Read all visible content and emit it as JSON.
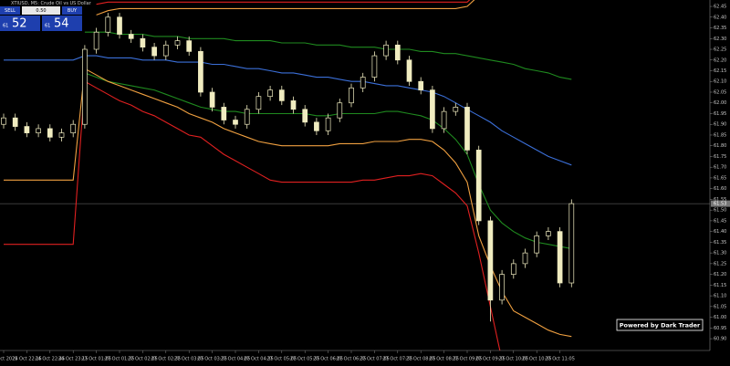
{
  "chart_data": {
    "type": "candlestick",
    "title": "XTIUSD, M5: Crude Oil vs US Dollar",
    "categories": [
      "24 Oct 2025",
      null,
      "24 Oct 22:15",
      null,
      "24 Oct 22:45",
      null,
      "24 Oct 23:15",
      null,
      "27 Oct 01:05",
      null,
      "27 Oct 01:35",
      null,
      "27 Oct 02:05",
      null,
      "27 Oct 02:35",
      null,
      "27 Oct 03:05",
      null,
      "27 Oct 03:35",
      null,
      "27 Oct 04:05",
      null,
      "27 Oct 04:35",
      null,
      "27 Oct 05:05",
      null,
      "27 Oct 05:35",
      null,
      "27 Oct 06:05",
      null,
      "27 Oct 06:35",
      null,
      "27 Oct 07:05",
      null,
      "27 Oct 07:35",
      null,
      "27 Oct 08:05",
      null,
      "27 Oct 08:35",
      null,
      "27 Oct 09:05",
      null,
      "27 Oct 09:35",
      null,
      "27 Oct 10:05",
      null,
      "27 Oct 10:35",
      null,
      "27 Oct 11:05",
      null
    ],
    "open": [
      61.9,
      61.93,
      61.89,
      61.86,
      61.88,
      61.84,
      61.86,
      61.9,
      62.25,
      62.33,
      62.4,
      62.32,
      62.3,
      62.26,
      62.22,
      62.27,
      62.29,
      62.24,
      62.05,
      61.98,
      61.92,
      61.9,
      61.97,
      62.03,
      62.06,
      62.01,
      61.97,
      61.91,
      61.87,
      61.93,
      62.0,
      62.07,
      62.12,
      62.22,
      62.27,
      62.2,
      62.1,
      62.06,
      61.88,
      61.96,
      61.98,
      61.78,
      61.45,
      61.08,
      61.2,
      61.25,
      61.3,
      61.38,
      61.4,
      61.16
    ],
    "high": [
      61.95,
      61.95,
      61.91,
      61.9,
      61.9,
      61.88,
      61.92,
      62.27,
      62.35,
      62.42,
      62.42,
      62.34,
      62.32,
      62.28,
      62.29,
      62.31,
      62.31,
      62.26,
      62.07,
      62.0,
      61.94,
      61.99,
      62.05,
      62.08,
      62.08,
      62.03,
      61.99,
      61.93,
      61.95,
      62.02,
      62.09,
      62.14,
      62.24,
      62.29,
      62.29,
      62.22,
      62.12,
      62.08,
      61.98,
      62.0,
      62.0,
      61.8,
      61.47,
      61.22,
      61.27,
      61.32,
      61.4,
      61.42,
      61.42,
      61.55
    ],
    "low": [
      61.88,
      61.87,
      61.84,
      61.84,
      61.82,
      61.82,
      61.84,
      61.88,
      62.23,
      62.31,
      62.3,
      62.28,
      62.24,
      62.2,
      62.2,
      62.25,
      62.22,
      62.03,
      61.96,
      61.9,
      61.88,
      61.88,
      61.95,
      62.01,
      61.99,
      61.95,
      61.89,
      61.85,
      61.85,
      61.91,
      61.98,
      62.05,
      62.1,
      62.2,
      62.18,
      62.08,
      62.04,
      61.86,
      61.86,
      61.94,
      61.76,
      61.43,
      60.98,
      61.06,
      61.18,
      61.23,
      61.28,
      61.36,
      61.14,
      61.14
    ],
    "close": [
      61.93,
      61.89,
      61.86,
      61.88,
      61.84,
      61.86,
      61.9,
      62.25,
      62.33,
      62.4,
      62.32,
      62.3,
      62.26,
      62.22,
      62.27,
      62.29,
      62.24,
      62.05,
      61.98,
      61.92,
      61.9,
      61.97,
      62.03,
      62.06,
      62.01,
      61.97,
      61.91,
      61.87,
      61.93,
      62.0,
      62.07,
      62.12,
      62.22,
      62.27,
      62.2,
      62.1,
      62.06,
      61.88,
      61.96,
      61.98,
      61.78,
      61.45,
      61.08,
      61.2,
      61.25,
      61.3,
      61.38,
      61.4,
      61.16,
      61.53
    ],
    "candle_color": "#f0ecc0",
    "bands": [
      {
        "color": "#3b6fd8",
        "values": [
          62.2,
          62.2,
          62.2,
          62.2,
          62.2,
          62.2,
          62.2,
          62.22,
          62.22,
          62.21,
          62.21,
          62.21,
          62.2,
          62.2,
          62.2,
          62.19,
          62.19,
          62.19,
          62.18,
          62.18,
          62.17,
          62.16,
          62.16,
          62.15,
          62.14,
          62.14,
          62.13,
          62.12,
          62.12,
          62.11,
          62.1,
          62.1,
          62.09,
          62.08,
          62.08,
          62.07,
          62.06,
          62.05,
          62.03,
          62.0,
          61.97,
          61.94,
          61.91,
          61.87,
          61.84,
          61.81,
          61.78,
          61.75,
          61.73,
          61.71
        ]
      },
      {
        "color": "#1f8a1f",
        "values": [
          null,
          null,
          null,
          null,
          null,
          null,
          null,
          62.33,
          62.33,
          62.33,
          62.32,
          62.32,
          62.32,
          62.31,
          62.31,
          62.31,
          62.3,
          62.3,
          62.3,
          62.3,
          62.29,
          62.29,
          62.29,
          62.29,
          62.28,
          62.28,
          62.28,
          62.27,
          62.27,
          62.27,
          62.26,
          62.26,
          62.26,
          62.25,
          62.25,
          62.25,
          62.24,
          62.24,
          62.23,
          62.23,
          62.22,
          62.21,
          62.2,
          62.19,
          62.18,
          62.16,
          62.15,
          62.14,
          62.12,
          62.11
        ]
      },
      {
        "color": "#1f8a1f",
        "values": [
          null,
          null,
          null,
          null,
          null,
          null,
          null,
          62.14,
          62.12,
          62.1,
          62.09,
          62.08,
          62.07,
          62.06,
          62.04,
          62.02,
          62.0,
          61.98,
          61.97,
          61.96,
          61.96,
          61.95,
          61.95,
          61.95,
          61.95,
          61.95,
          61.95,
          61.94,
          61.94,
          61.95,
          61.95,
          61.95,
          61.95,
          61.96,
          61.96,
          61.95,
          61.94,
          61.92,
          61.88,
          61.83,
          61.76,
          61.62,
          61.5,
          61.44,
          61.4,
          61.37,
          61.35,
          61.34,
          61.33,
          61.32
        ]
      },
      {
        "color": "#f0a040",
        "values": [
          61.64,
          61.64,
          61.64,
          61.64,
          61.64,
          61.64,
          61.64,
          62.16,
          62.13,
          62.1,
          62.08,
          62.06,
          62.04,
          62.02,
          62.0,
          61.98,
          61.95,
          61.93,
          61.91,
          61.88,
          61.86,
          61.84,
          61.82,
          61.81,
          61.8,
          61.8,
          61.8,
          61.8,
          61.8,
          61.81,
          61.81,
          61.81,
          61.82,
          61.82,
          61.82,
          61.83,
          61.83,
          61.82,
          61.78,
          61.72,
          61.63,
          61.38,
          61.24,
          61.12,
          61.03,
          61.0,
          60.97,
          60.94,
          60.92,
          60.91
        ]
      },
      {
        "color": "#f0a040",
        "values": [
          null,
          null,
          null,
          null,
          null,
          null,
          null,
          null,
          62.41,
          62.43,
          62.44,
          62.44,
          62.44,
          62.44,
          62.44,
          62.44,
          62.44,
          62.44,
          62.44,
          62.44,
          62.44,
          62.44,
          62.44,
          62.44,
          62.44,
          62.44,
          62.44,
          62.44,
          62.44,
          62.44,
          62.44,
          62.44,
          62.44,
          62.44,
          62.44,
          62.44,
          62.44,
          62.44,
          62.44,
          62.44,
          62.45,
          62.5,
          null,
          null,
          null,
          null,
          null,
          null,
          null,
          null
        ]
      },
      {
        "color": "#e02020",
        "values": [
          61.34,
          61.34,
          61.34,
          61.34,
          61.34,
          61.34,
          61.34,
          62.1,
          62.07,
          62.04,
          62.01,
          61.99,
          61.96,
          61.94,
          61.91,
          61.88,
          61.85,
          61.84,
          61.8,
          61.76,
          61.73,
          61.7,
          61.67,
          61.64,
          61.63,
          61.63,
          61.63,
          61.63,
          61.63,
          61.63,
          61.63,
          61.64,
          61.64,
          61.65,
          61.66,
          61.66,
          61.67,
          61.66,
          61.62,
          61.58,
          61.52,
          61.3,
          61.05,
          60.8,
          null,
          null,
          null,
          null,
          null,
          null
        ]
      },
      {
        "color": "#e02020",
        "values": [
          null,
          null,
          null,
          null,
          null,
          null,
          null,
          null,
          62.46,
          62.47,
          62.47,
          62.47,
          62.47,
          62.47,
          62.47,
          62.47,
          62.47,
          62.47,
          62.47,
          62.47,
          62.47,
          62.47,
          62.47,
          62.47,
          62.47,
          62.47,
          62.47,
          62.47,
          62.47,
          62.47,
          62.47,
          62.47,
          62.47,
          62.47,
          62.47,
          62.47,
          62.47,
          62.47,
          62.47,
          62.47,
          62.47,
          62.52,
          null,
          null,
          null,
          null,
          null,
          null,
          null,
          null
        ]
      }
    ],
    "last_price": 61.53,
    "ylim": [
      60.845,
      62.48
    ],
    "yticks": [
      62.45,
      {
        "value": 62.4,
        "label": "62.40"
      },
      62.35,
      {
        "value": 62.3,
        "label": "62.30"
      },
      62.25,
      {
        "value": 62.2,
        "label": "62.20"
      },
      62.15,
      {
        "value": 62.1,
        "label": "62.10"
      },
      62.05,
      {
        "value": 62.0,
        "label": "62.00"
      },
      61.95,
      {
        "value": 61.9,
        "label": "61.90"
      },
      61.85,
      {
        "value": 61.8,
        "label": "61.80"
      },
      61.75,
      {
        "value": 61.7,
        "label": "61.70"
      },
      61.65,
      {
        "value": 61.6,
        "label": "61.60"
      },
      61.55,
      {
        "value": 61.5,
        "label": "61.50"
      },
      61.45,
      {
        "value": 61.4,
        "label": "61.40"
      },
      61.35,
      {
        "value": 61.3,
        "label": "61.30"
      },
      61.25,
      {
        "value": 61.2,
        "label": "61.20"
      },
      61.15,
      {
        "value": 61.1,
        "label": "61.10"
      },
      61.05,
      {
        "value": 61.0,
        "label": "61.00"
      },
      60.95,
      {
        "value": 60.9,
        "label": "60.90"
      }
    ]
  },
  "trade_panel": {
    "sell": "SELL",
    "lots": "0.50",
    "buy": "BUY",
    "bid_big": "61",
    "bid_small": "52",
    "ask_big": "61",
    "ask_small": "54"
  },
  "watermark": "Powered by Dark Trader"
}
